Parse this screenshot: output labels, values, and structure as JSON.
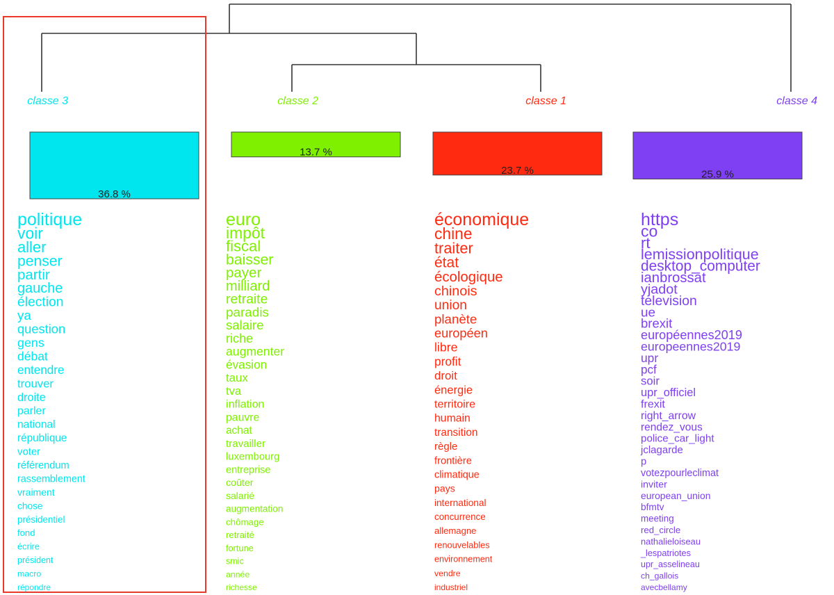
{
  "chart_data": {
    "type": "dendrogram",
    "classes": [
      {
        "label": "classe  3",
        "percent_label": "36.8 %",
        "percent": 36.8,
        "color": "#00e6ee",
        "words": [
          "politique",
          "voir",
          "aller",
          "penser",
          "partir",
          "gauche",
          "élection",
          "ya",
          "question",
          "gens",
          "débat",
          "entendre",
          "trouver",
          "droite",
          "parler",
          "national",
          "république",
          "voter",
          "référendum",
          "rassemblement",
          "vraiment",
          "chose",
          "présidentiel",
          "fond",
          "écrire",
          "président",
          "macro",
          "répondre"
        ]
      },
      {
        "label": "classe  2",
        "percent_label": "13.7 %",
        "percent": 13.7,
        "color": "#7ef000",
        "words": [
          "euro",
          "impôt",
          "fiscal",
          "baisser",
          "payer",
          "milliard",
          "retraite",
          "paradis",
          "salaire",
          "riche",
          "augmenter",
          "évasion",
          "taux",
          "tva",
          "inflation",
          "pauvre",
          "achat",
          "travailler",
          "luxembourg",
          "entreprise",
          "coûter",
          "salarié",
          "augmentation",
          "chômage",
          "retraité",
          "fortune",
          "smic",
          "année",
          "richesse"
        ]
      },
      {
        "label": "classe  1",
        "percent_label": "23.7 %",
        "percent": 23.7,
        "color": "#ff2a10",
        "words": [
          "économique",
          "chine",
          "traiter",
          "état",
          "écologique",
          "chinois",
          "union",
          "planète",
          "européen",
          "libre",
          "profit",
          "droit",
          "énergie",
          "territoire",
          "humain",
          "transition",
          "règle",
          "frontière",
          "climatique",
          "pays",
          "international",
          "concurrence",
          "allemagne",
          "renouvelables",
          "environnement",
          "vendre",
          "industriel"
        ]
      },
      {
        "label": "classe  4",
        "percent_label": "25.9 %",
        "percent": 25.9,
        "color": "#7f3ff2",
        "words": [
          "https",
          "co",
          "rt",
          "lemissionpolitique",
          "desktop_computer",
          "ianbrossat",
          "yjadot",
          "television",
          "ue",
          "brexit",
          "européennes2019",
          "europeennes2019",
          "upr",
          "pcf",
          "soir",
          "upr_officiel",
          "frexit",
          "right_arrow",
          "rendez_vous",
          "police_car_light",
          "jclagarde",
          "p",
          "votezpourleclimat",
          "inviter",
          "european_union",
          "bfmtv",
          "meeting",
          "red_circle",
          "nathalieloiseau",
          "_lespatriotes",
          "upr_asselineau",
          "ch_gallois",
          "avecbellamy"
        ]
      }
    ],
    "tree": [
      "classe  3",
      [
        [
          "classe  2",
          "classe  1"
        ]
      ],
      "classe  4"
    ],
    "highlight_color": "#e8382a"
  }
}
